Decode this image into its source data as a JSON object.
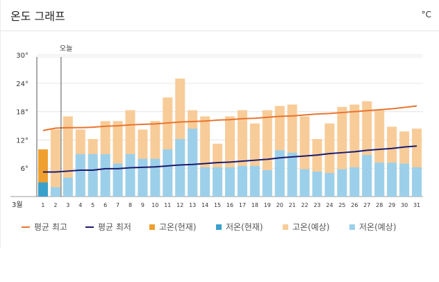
{
  "header": {
    "title": "온도 그래프",
    "unit": "°C"
  },
  "colors": {
    "avg_high": "#e8742f",
    "avg_low": "#1a1a6e",
    "high_current": "#f0a030",
    "low_current": "#3aa0cc",
    "high_forecast": "#f8cc98",
    "low_forecast": "#9cd0ea",
    "today_line": "#555555",
    "grid": "#e4e4e4"
  },
  "chart_data": {
    "type": "bar",
    "month_label": "3월",
    "today_label": "오늘",
    "today_day": 2,
    "ylim": [
      0,
      34
    ],
    "yticks": [
      6,
      12,
      18,
      24,
      30
    ],
    "ytick_labels": [
      "6°",
      "12°",
      "18°",
      "24°",
      "30°"
    ],
    "categories": [
      "1",
      "2",
      "3",
      "4",
      "5",
      "6",
      "7",
      "8",
      "9",
      "10",
      "11",
      "12",
      "13",
      "14",
      "15",
      "16",
      "17",
      "18",
      "19",
      "20",
      "21",
      "22",
      "23",
      "24",
      "25",
      "26",
      "27",
      "28",
      "29",
      "30",
      "31"
    ],
    "series": [
      {
        "name": "평균 최고",
        "kind": "line",
        "values": [
          14.0,
          14.5,
          14.6,
          14.6,
          14.7,
          14.9,
          15.0,
          15.2,
          15.3,
          15.4,
          15.6,
          15.8,
          15.9,
          16.0,
          16.2,
          16.3,
          16.5,
          16.6,
          16.8,
          17.0,
          17.1,
          17.3,
          17.5,
          17.6,
          17.8,
          18.0,
          18.2,
          18.4,
          18.6,
          18.9,
          19.2
        ]
      },
      {
        "name": "평균 최저",
        "kind": "line",
        "values": [
          5.2,
          5.2,
          5.4,
          5.6,
          5.6,
          5.9,
          5.9,
          6.1,
          6.2,
          6.3,
          6.5,
          6.7,
          6.8,
          7.0,
          7.2,
          7.3,
          7.5,
          7.7,
          7.9,
          8.2,
          8.4,
          8.6,
          8.8,
          9.1,
          9.3,
          9.5,
          9.8,
          10.0,
          10.2,
          10.5,
          10.7
        ]
      },
      {
        "name": "고온(현재)",
        "kind": "bar",
        "values": [
          10.0,
          null,
          null,
          null,
          null,
          null,
          null,
          null,
          null,
          null,
          null,
          null,
          null,
          null,
          null,
          null,
          null,
          null,
          null,
          null,
          null,
          null,
          null,
          null,
          null,
          null,
          null,
          null,
          null,
          null,
          null
        ]
      },
      {
        "name": "저온(현재)",
        "kind": "bar",
        "values": [
          3.0,
          null,
          null,
          null,
          null,
          null,
          null,
          null,
          null,
          null,
          null,
          null,
          null,
          null,
          null,
          null,
          null,
          null,
          null,
          null,
          null,
          null,
          null,
          null,
          null,
          null,
          null,
          null,
          null,
          null,
          null
        ]
      },
      {
        "name": "고온(예상)",
        "kind": "bar",
        "values": [
          null,
          14.2,
          17.0,
          14.2,
          12.2,
          16.0,
          16.0,
          18.3,
          14.2,
          16.0,
          21.0,
          25.0,
          18.3,
          17.0,
          11.2,
          17.0,
          18.3,
          15.5,
          18.3,
          19.2,
          19.5,
          17.0,
          12.2,
          15.5,
          19.0,
          19.5,
          20.2,
          18.3,
          14.8,
          13.8,
          14.4
        ]
      },
      {
        "name": "저온(예상)",
        "kind": "bar",
        "values": [
          null,
          2.0,
          4.0,
          9.0,
          9.0,
          9.0,
          7.0,
          9.0,
          8.0,
          8.0,
          10.0,
          12.2,
          14.4,
          6.2,
          6.2,
          6.2,
          6.5,
          6.5,
          5.6,
          9.8,
          9.3,
          5.8,
          5.3,
          5.0,
          5.8,
          6.2,
          8.8,
          7.2,
          7.2,
          7.0,
          6.2
        ]
      }
    ]
  }
}
